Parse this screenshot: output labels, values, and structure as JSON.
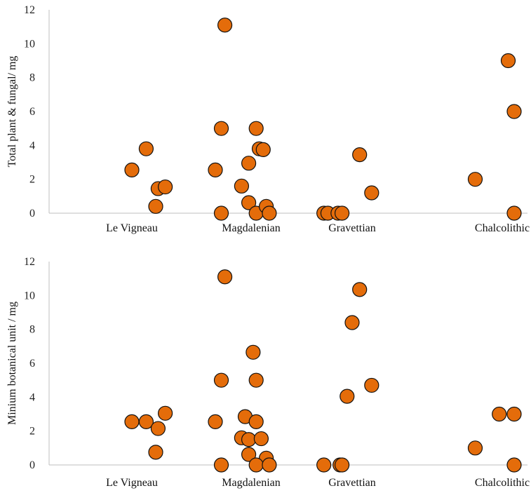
{
  "colors": {
    "marker_fill": "#E46C0A",
    "marker_stroke": "#111111",
    "axis": "#bfbfbf"
  },
  "chart_data": [
    {
      "type": "scatter",
      "ylabel": "Total plant & fungal/ mg",
      "ylim": [
        0,
        12
      ],
      "yticks": [
        "0",
        "2",
        "4",
        "6",
        "8",
        "10",
        "12"
      ],
      "categories": [
        "Le Vigneau",
        "Magdalenian",
        "Gravettian",
        "Chalcolithic"
      ],
      "grid": false,
      "points": [
        {
          "x": 0.7,
          "y": 2.55
        },
        {
          "x": 0.92,
          "y": 1.6
        },
        {
          "x": 0.98,
          "y": 0.62
        },
        {
          "x": 0.98,
          "y": 2.95
        },
        {
          "x": 1.0,
          "y": 2.55
        },
        {
          "x": 1.12,
          "y": 3.8
        },
        {
          "x": 1.2,
          "y": 0.4
        },
        {
          "x": 1.22,
          "y": 1.45
        },
        {
          "x": 1.28,
          "y": 1.55
        },
        {
          "x": 1.75,
          "y": 5.0
        },
        {
          "x": 1.78,
          "y": 11.1
        },
        {
          "x": 1.75,
          "y": 0.0
        },
        {
          "x": 2.05,
          "y": 5.0
        },
        {
          "x": 2.05,
          "y": 0.0
        },
        {
          "x": 2.08,
          "y": 3.8
        },
        {
          "x": 2.12,
          "y": 3.75
        },
        {
          "x": 2.15,
          "y": 0.4
        },
        {
          "x": 2.18,
          "y": 0.0
        },
        {
          "x": 2.72,
          "y": 0.0
        },
        {
          "x": 2.76,
          "y": 0.0
        },
        {
          "x": 2.86,
          "y": 0.0
        },
        {
          "x": 2.9,
          "y": 0.0
        },
        {
          "x": 3.05,
          "y": 3.45
        },
        {
          "x": 3.13,
          "y": 1.2
        },
        {
          "x": 3.82,
          "y": 2.0
        },
        {
          "x": 4.05,
          "y": 9.0
        },
        {
          "x": 4.1,
          "y": 6.0
        },
        {
          "x": 4.1,
          "y": 0.0
        }
      ]
    },
    {
      "type": "scatter",
      "ylabel": "Minium botanical unit / mg",
      "ylim": [
        0,
        12
      ],
      "yticks": [
        "0",
        "2",
        "4",
        "6",
        "8",
        "10",
        "12"
      ],
      "categories": [
        "Le Vigneau",
        "Magdalenian",
        "Gravettian",
        "Chalcolithic"
      ],
      "grid": false,
      "points": [
        {
          "x": 0.7,
          "y": 2.55
        },
        {
          "x": 0.92,
          "y": 1.6
        },
        {
          "x": 0.98,
          "y": 1.5
        },
        {
          "x": 0.98,
          "y": 0.62
        },
        {
          "x": 1.0,
          "y": 2.55
        },
        {
          "x": 1.12,
          "y": 2.55
        },
        {
          "x": 1.2,
          "y": 0.75
        },
        {
          "x": 1.22,
          "y": 2.15
        },
        {
          "x": 1.28,
          "y": 3.05
        },
        {
          "x": 1.75,
          "y": 5.0
        },
        {
          "x": 1.78,
          "y": 11.1
        },
        {
          "x": 1.75,
          "y": 0.0
        },
        {
          "x": 1.95,
          "y": 2.85
        },
        {
          "x": 2.02,
          "y": 6.65
        },
        {
          "x": 2.05,
          "y": 5.0
        },
        {
          "x": 2.05,
          "y": 2.55
        },
        {
          "x": 2.1,
          "y": 1.55
        },
        {
          "x": 2.15,
          "y": 0.4
        },
        {
          "x": 2.05,
          "y": 0.0
        },
        {
          "x": 2.18,
          "y": 0.0
        },
        {
          "x": 2.72,
          "y": 0.0
        },
        {
          "x": 2.88,
          "y": 0.0
        },
        {
          "x": 2.9,
          "y": 0.0
        },
        {
          "x": 2.95,
          "y": 4.05
        },
        {
          "x": 3.0,
          "y": 8.4
        },
        {
          "x": 3.05,
          "y": 10.35
        },
        {
          "x": 3.13,
          "y": 4.7
        },
        {
          "x": 3.82,
          "y": 1.0
        },
        {
          "x": 3.98,
          "y": 3.0
        },
        {
          "x": 4.1,
          "y": 3.0
        },
        {
          "x": 4.1,
          "y": 0.0
        }
      ]
    }
  ]
}
